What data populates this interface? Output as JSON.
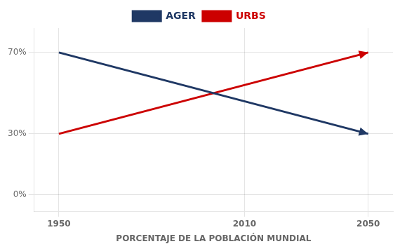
{
  "chart_data": {
    "type": "line",
    "x_label": "PORCENTAJE DE LA POBLACIÓN MUNDIAL",
    "x": [
      1950,
      2050
    ],
    "series": [
      {
        "name": "AGER",
        "color": "#1f3864",
        "values": [
          70,
          30
        ]
      },
      {
        "name": "URBS",
        "color": "#cc0000",
        "values": [
          30,
          70
        ]
      }
    ],
    "xlim": [
      1942,
      2058
    ],
    "xticks": [
      1950,
      2010,
      2050
    ],
    "ylim": [
      -8,
      82
    ],
    "yticks": [
      {
        "value": 0,
        "label": "0%"
      },
      {
        "value": 30,
        "label": "30%"
      },
      {
        "value": 70,
        "label": "70%"
      }
    ],
    "grid": true,
    "legend": "top"
  }
}
